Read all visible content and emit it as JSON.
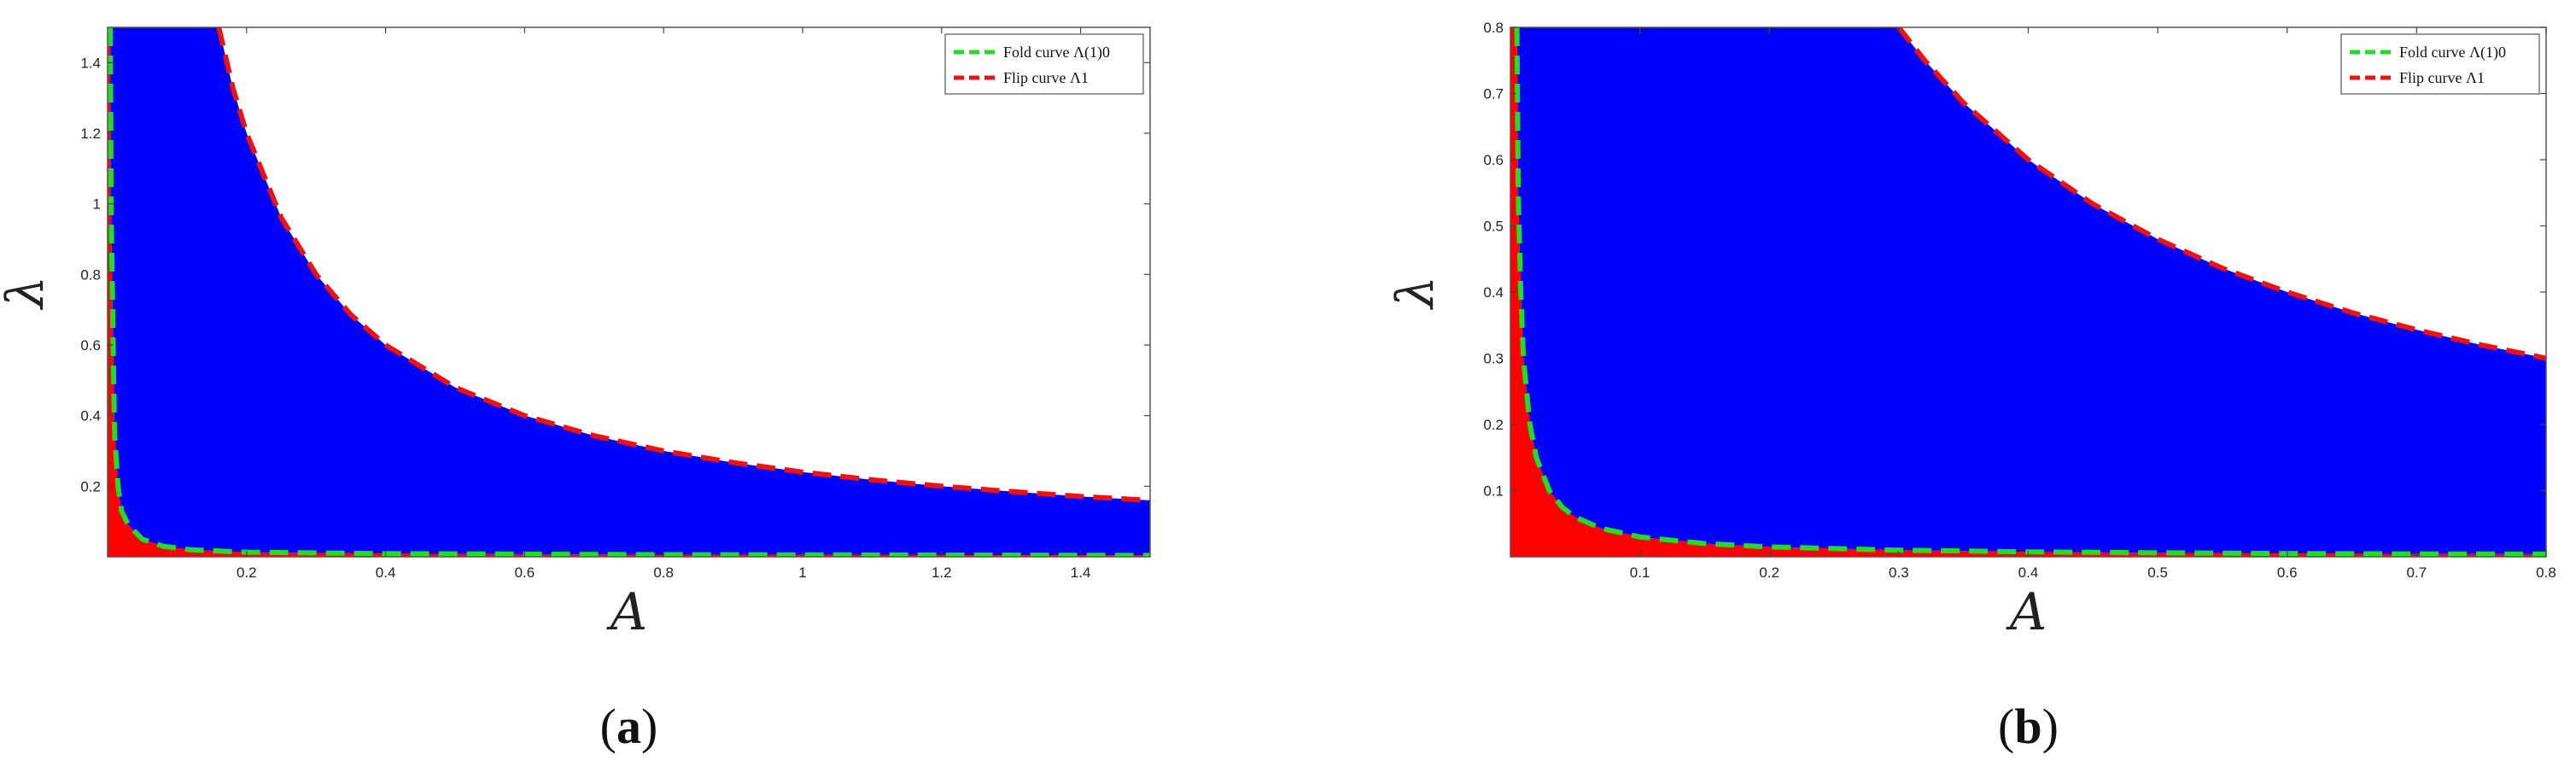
{
  "chart_data": [
    {
      "type": "area",
      "panel_label": "a",
      "xlabel": "A",
      "ylabel": "λ",
      "xlim": [
        0,
        1.5
      ],
      "ylim": [
        0,
        1.5
      ],
      "xticks": [
        0.2,
        0.4,
        0.6,
        0.8,
        1,
        1.2,
        1.4
      ],
      "xtick_labels": [
        "0.2",
        "0.4",
        "0.6",
        "0.8",
        "1",
        "1.2",
        "1.4"
      ],
      "yticks": [
        0.2,
        0.4,
        0.6,
        0.8,
        1,
        1.2,
        1.4
      ],
      "ytick_labels": [
        "0.2",
        "0.4",
        "0.6",
        "0.8",
        "1",
        "1.2",
        "1.4"
      ],
      "grid": false,
      "legend_position": "top-right",
      "series": [
        {
          "name": "Fold curve Λ(1)0",
          "color": "#22dd22",
          "style": "dashed",
          "x": [
            0.004,
            0.005,
            0.008,
            0.01,
            0.015,
            0.02,
            0.03,
            0.05,
            0.08,
            0.12,
            0.2,
            0.4,
            0.8,
            1.2,
            1.5
          ],
          "y": [
            1.5,
            1.0,
            0.6,
            0.35,
            0.2,
            0.13,
            0.09,
            0.05,
            0.03,
            0.02,
            0.013,
            0.009,
            0.006,
            0.005,
            0.004
          ]
        },
        {
          "name": "Flip curve Λ1",
          "color": "#ee1111",
          "style": "dashed",
          "x": [
            0.16,
            0.18,
            0.2,
            0.25,
            0.3,
            0.35,
            0.4,
            0.5,
            0.6,
            0.7,
            0.8,
            0.9,
            1.0,
            1.1,
            1.2,
            1.3,
            1.4,
            1.5
          ],
          "y": [
            1.5,
            1.33,
            1.2,
            0.96,
            0.8,
            0.686,
            0.6,
            0.48,
            0.4,
            0.343,
            0.3,
            0.267,
            0.24,
            0.218,
            0.2,
            0.185,
            0.171,
            0.16
          ]
        }
      ],
      "regions": [
        {
          "name": "unstable-region",
          "color": "#0000ff"
        },
        {
          "name": "low-region",
          "color": "#ff0000"
        }
      ]
    },
    {
      "type": "area",
      "panel_label": "b",
      "xlabel": "A",
      "ylabel": "λ",
      "xlim": [
        0,
        0.8
      ],
      "ylim": [
        0,
        0.8
      ],
      "xticks": [
        0.1,
        0.2,
        0.3,
        0.4,
        0.5,
        0.6,
        0.7,
        0.8
      ],
      "xtick_labels": [
        "0.1",
        "0.2",
        "0.3",
        "0.4",
        "0.5",
        "0.6",
        "0.7",
        "0.8"
      ],
      "yticks": [
        0.1,
        0.2,
        0.3,
        0.4,
        0.5,
        0.6,
        0.7,
        0.8
      ],
      "ytick_labels": [
        "0.1",
        "0.2",
        "0.3",
        "0.4",
        "0.5",
        "0.6",
        "0.7",
        "0.8"
      ],
      "grid": false,
      "legend_position": "top-right",
      "series": [
        {
          "name": "Fold curve Λ(1)0",
          "color": "#22dd22",
          "style": "dashed",
          "x": [
            0.005,
            0.006,
            0.008,
            0.01,
            0.015,
            0.02,
            0.03,
            0.04,
            0.05,
            0.07,
            0.1,
            0.15,
            0.2,
            0.3,
            0.4,
            0.5,
            0.6,
            0.7,
            0.8
          ],
          "y": [
            0.8,
            0.55,
            0.4,
            0.3,
            0.2,
            0.15,
            0.1,
            0.075,
            0.06,
            0.043,
            0.03,
            0.02,
            0.015,
            0.01,
            0.0075,
            0.006,
            0.005,
            0.0043,
            0.004
          ]
        },
        {
          "name": "Flip curve Λ1",
          "color": "#ee1111",
          "style": "dashed",
          "x": [
            0.3,
            0.32,
            0.35,
            0.4,
            0.45,
            0.5,
            0.55,
            0.6,
            0.65,
            0.7,
            0.75,
            0.8
          ],
          "y": [
            0.8,
            0.75,
            0.686,
            0.6,
            0.533,
            0.48,
            0.436,
            0.4,
            0.369,
            0.343,
            0.32,
            0.3
          ]
        }
      ],
      "regions": [
        {
          "name": "unstable-region",
          "color": "#0000ff"
        },
        {
          "name": "low-region",
          "color": "#ff0000"
        }
      ]
    }
  ]
}
